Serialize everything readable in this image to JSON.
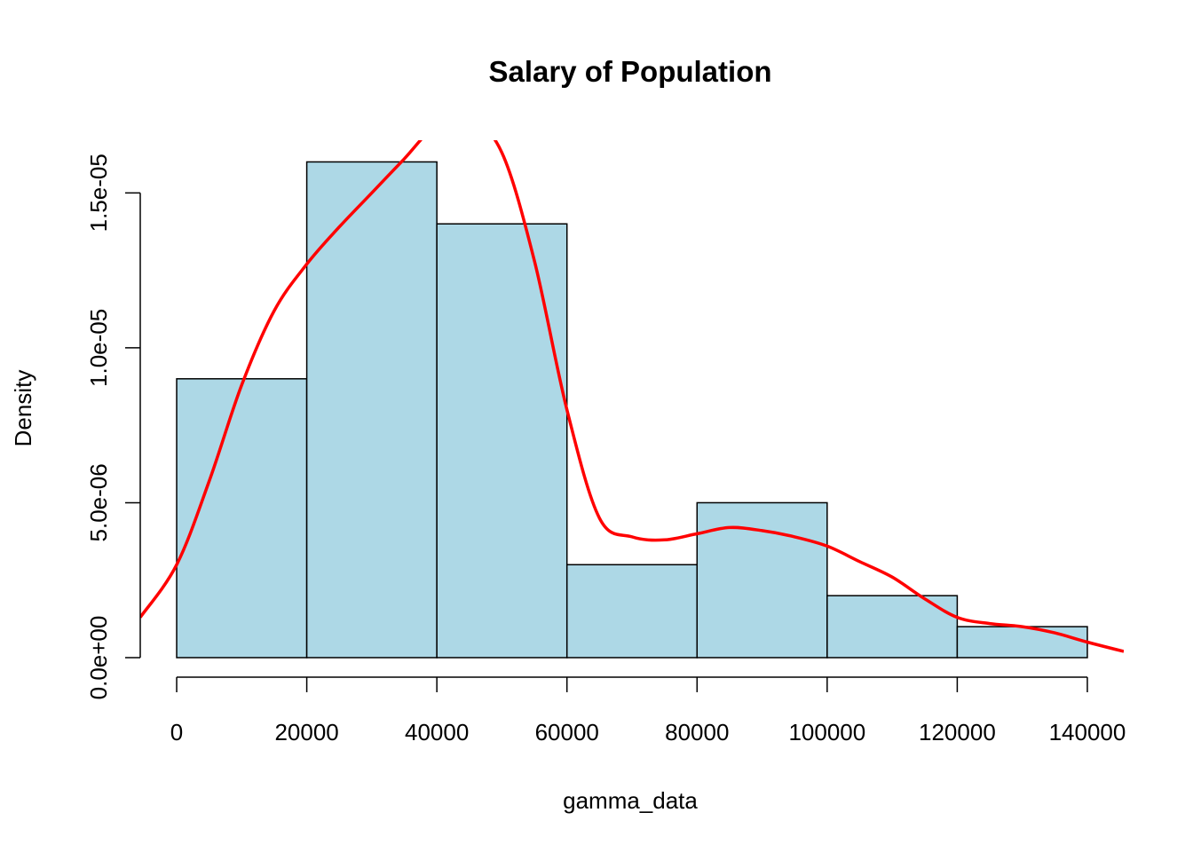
{
  "chart_data": {
    "type": "bar",
    "title": "Salary of Population",
    "xlabel": "gamma_data",
    "ylabel": "Density",
    "xlim": [
      -5600,
      145600
    ],
    "ylim": [
      0,
      1.67e-05
    ],
    "x_ticks": [
      0,
      20000,
      40000,
      60000,
      80000,
      100000,
      120000,
      140000
    ],
    "x_tick_labels": [
      "0",
      "20000",
      "40000",
      "60000",
      "80000",
      "100000",
      "120000",
      "140000"
    ],
    "y_ticks": [
      0,
      5e-06,
      1e-05,
      1.5e-05
    ],
    "y_tick_labels": [
      "0.0e+00",
      "5.0e-06",
      "1.0e-05",
      "1.5e-05"
    ],
    "bins": [
      {
        "x0": 0,
        "x1": 20000,
        "density": 9e-06
      },
      {
        "x0": 20000,
        "x1": 40000,
        "density": 1.6e-05
      },
      {
        "x0": 40000,
        "x1": 60000,
        "density": 1.4e-05
      },
      {
        "x0": 60000,
        "x1": 80000,
        "density": 3e-06
      },
      {
        "x0": 80000,
        "x1": 100000,
        "density": 5e-06
      },
      {
        "x0": 100000,
        "x1": 120000,
        "density": 2e-06
      },
      {
        "x0": 120000,
        "x1": 140000,
        "density": 1e-06
      }
    ],
    "density_curve": {
      "x": [
        -5600,
        0,
        5000,
        10000,
        15000,
        20000,
        25000,
        30000,
        35000,
        40000,
        45000,
        50000,
        55000,
        60000,
        65000,
        70000,
        75000,
        80000,
        85000,
        90000,
        95000,
        100000,
        105000,
        110000,
        115000,
        120000,
        125000,
        130000,
        135000,
        140000,
        145600
      ],
      "y": [
        1.3e-06,
        3e-06,
        5.7e-06,
        8.8e-06,
        1.12e-05,
        1.27e-05,
        1.39e-05,
        1.5e-05,
        1.61e-05,
        1.72e-05,
        1.74e-05,
        1.63e-05,
        1.28e-05,
        8e-06,
        4.5e-06,
        3.9e-06,
        3.8e-06,
        4e-06,
        4.2e-06,
        4.1e-06,
        3.9e-06,
        3.6e-06,
        3.1e-06,
        2.6e-06,
        1.9e-06,
        1.3e-06,
        1.1e-06,
        1e-06,
        8e-07,
        5e-07,
        2e-07
      ],
      "color": "#ff0000"
    },
    "bar_fill": "#add8e6",
    "bar_stroke": "#000000",
    "grid": false,
    "legend": "none"
  }
}
